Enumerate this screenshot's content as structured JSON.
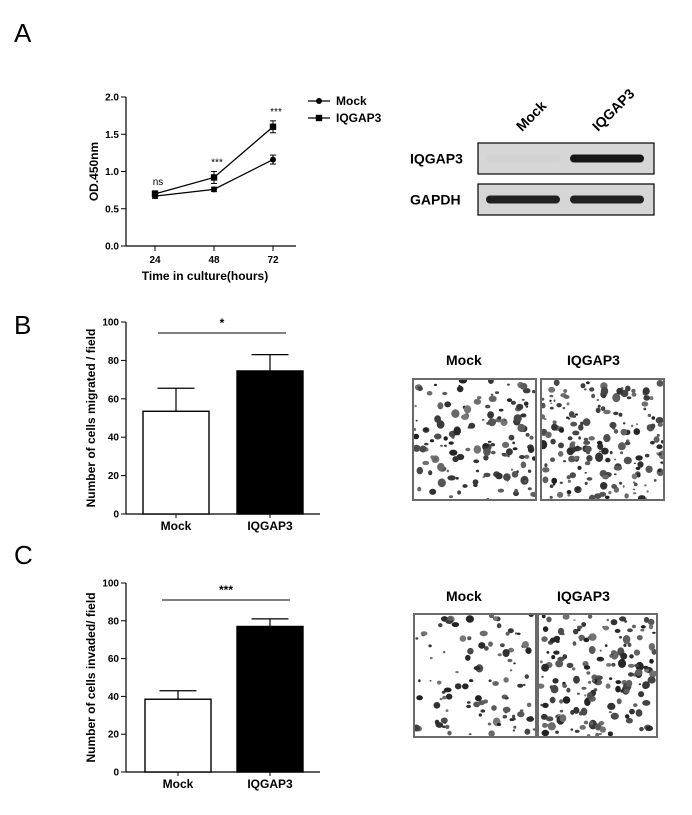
{
  "panels": {
    "a": "A",
    "b": "B",
    "c": "C"
  },
  "chart_data": [
    {
      "type": "line",
      "panel": "A",
      "x": [
        24,
        48,
        72
      ],
      "series": [
        {
          "name": "Mock",
          "marker": "circle",
          "values": [
            0.67,
            0.76,
            1.16
          ],
          "err": [
            0.03,
            0.03,
            0.06
          ]
        },
        {
          "name": "IQGAP3",
          "marker": "square",
          "values": [
            0.7,
            0.92,
            1.6
          ],
          "err": [
            0.04,
            0.08,
            0.08
          ]
        }
      ],
      "significance": [
        "ns",
        "***",
        "***"
      ],
      "xlabel": "Time in culture(hours)",
      "ylabel": "OD.450nm",
      "ylim": [
        0.0,
        2.0
      ],
      "yticks": [
        "0.0",
        "0.5",
        "1.0",
        "1.5",
        "2.0"
      ],
      "xticks": [
        "24",
        "48",
        "72"
      ],
      "legend_position": "top-right"
    },
    {
      "type": "bar",
      "panel": "B",
      "categories": [
        "Mock",
        "IQGAP3"
      ],
      "values": [
        53.5,
        74.5
      ],
      "err": [
        12,
        8.5
      ],
      "colors": [
        "#ffffff",
        "#000000"
      ],
      "ylabel": "Number of cells migrated / field",
      "ylim": [
        0,
        100
      ],
      "yticks": [
        "0",
        "20",
        "40",
        "60",
        "80",
        "100"
      ],
      "significance": "*"
    },
    {
      "type": "bar",
      "panel": "C",
      "categories": [
        "Mock",
        "IQGAP3"
      ],
      "values": [
        38.5,
        77
      ],
      "err": [
        4.5,
        4
      ],
      "colors": [
        "#ffffff",
        "#000000"
      ],
      "ylabel": "Number of cells invaded/ field",
      "ylim": [
        0,
        100
      ],
      "yticks": [
        "0",
        "20",
        "40",
        "60",
        "80",
        "100"
      ],
      "significance": "***"
    }
  ],
  "western_blot": {
    "lanes": [
      "Mock",
      "IQGAP3"
    ],
    "rows": [
      {
        "label": "IQGAP3",
        "bands": [
          0.05,
          0.9
        ]
      },
      {
        "label": "GAPDH",
        "bands": [
          0.85,
          0.85
        ]
      }
    ]
  },
  "micrographs": {
    "b": {
      "labels": [
        "Mock",
        "IQGAP3"
      ],
      "density": [
        0.55,
        0.75
      ]
    },
    "c": {
      "labels": [
        "Mock",
        "IQGAP3"
      ],
      "density": [
        0.4,
        0.7
      ]
    }
  },
  "colors": {
    "ink": "#000000",
    "frame": "#6a6a6a",
    "blot_bg": "#d6d6d6"
  }
}
